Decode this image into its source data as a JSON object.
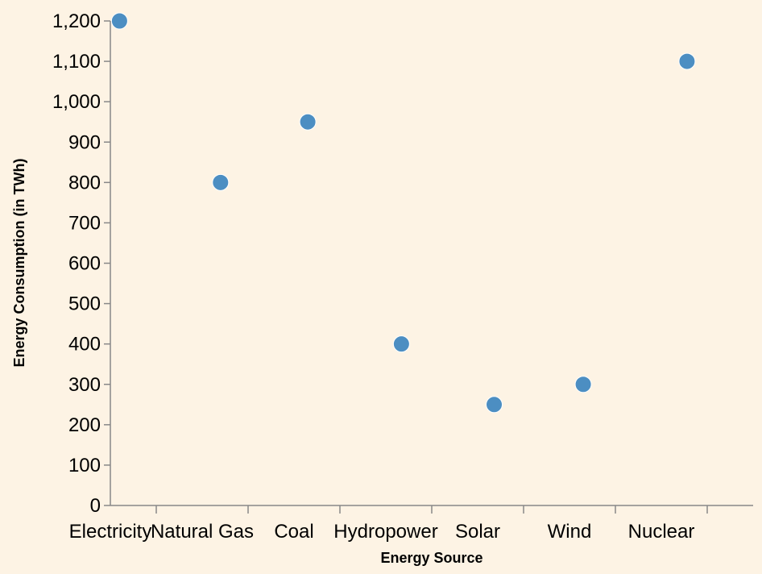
{
  "chart_data": {
    "type": "scatter",
    "title": "",
    "xlabel": "Energy Source",
    "ylabel": "Energy Consumption (in TWh)",
    "categories": [
      "Electricity",
      "Natural Gas",
      "Coal",
      "Hydropower",
      "Solar",
      "Wind",
      "Nuclear"
    ],
    "x": [
      0.1,
      1.2,
      2.15,
      3.17,
      4.18,
      5.15,
      6.28
    ],
    "values": [
      1200,
      800,
      950,
      400,
      250,
      300,
      1100
    ],
    "ylim": [
      0,
      1200
    ],
    "yticks": [
      0,
      100,
      200,
      300,
      400,
      500,
      600,
      700,
      800,
      900,
      1000,
      1100,
      1200
    ],
    "ytick_labels": [
      "0",
      "100",
      "200",
      "300",
      "400",
      "500",
      "600",
      "700",
      "800",
      "900",
      "1,000",
      "1,100",
      "1,200"
    ],
    "grid": false,
    "colors": {
      "point": "#4c8ec2",
      "background": "#fdf3e4",
      "axis": "#888888"
    }
  }
}
